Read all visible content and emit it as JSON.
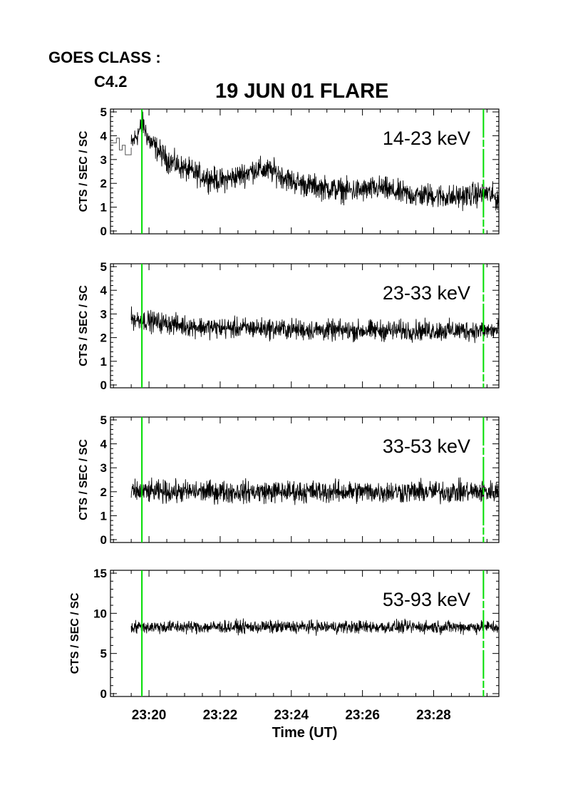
{
  "header": {
    "goes_label": "GOES CLASS :",
    "goes_class": "C4.2",
    "title": "19 JUN 01 FLARE"
  },
  "chart_data": [
    {
      "type": "line",
      "band": "14-23 keV",
      "ylabel": "CTS / SEC / SC",
      "ylim": [
        0,
        5
      ],
      "yticks": [
        0,
        1,
        2,
        3,
        4,
        5
      ],
      "xlim": [
        "23:18:55",
        "23:29:50"
      ],
      "series": [
        {
          "x": [
            "23:19:30",
            "23:19:50",
            "23:20:00",
            "23:20:30",
            "23:21:00",
            "23:21:30",
            "23:22:00",
            "23:22:30",
            "23:23:00",
            "23:23:30",
            "23:24:00",
            "23:24:30",
            "23:25:00",
            "23:25:30",
            "23:26:00",
            "23:26:30",
            "23:27:00",
            "23:27:30",
            "23:28:00",
            "23:28:30",
            "23:29:00",
            "23:29:30",
            "23:29:50"
          ],
          "y": [
            3.6,
            4.5,
            3.8,
            3.0,
            2.6,
            2.3,
            2.1,
            2.3,
            2.6,
            2.5,
            2.1,
            1.9,
            1.8,
            1.7,
            1.7,
            1.8,
            1.6,
            1.5,
            1.5,
            1.4,
            1.5,
            1.6,
            1.3
          ],
          "noise": 0.35
        }
      ],
      "pre_flare_step": {
        "x": [
          "23:18:55",
          "23:19:05",
          "23:19:10",
          "23:19:15",
          "23:19:20",
          "23:19:30"
        ],
        "y": [
          3.7,
          3.9,
          3.4,
          3.6,
          3.2,
          3.5
        ]
      },
      "markers": [
        "23:19:48",
        "23:29:24"
      ],
      "marker_color": "#00dd00"
    },
    {
      "type": "line",
      "band": "23-33 keV",
      "ylabel": "CTS / SEC / SC",
      "ylim": [
        0,
        5
      ],
      "yticks": [
        0,
        1,
        2,
        3,
        4,
        5
      ],
      "xlim": [
        "23:18:55",
        "23:29:50"
      ],
      "series": [
        {
          "x": [
            "23:19:30",
            "23:20:00",
            "23:21:00",
            "23:22:00",
            "23:23:00",
            "23:24:00",
            "23:25:00",
            "23:26:00",
            "23:27:00",
            "23:28:00",
            "23:29:00",
            "23:29:50"
          ],
          "y": [
            2.8,
            2.7,
            2.5,
            2.4,
            2.4,
            2.35,
            2.3,
            2.3,
            2.3,
            2.3,
            2.3,
            2.3
          ],
          "noise": 0.3
        }
      ],
      "markers": [
        "23:19:48",
        "23:29:24"
      ],
      "marker_color": "#00dd00"
    },
    {
      "type": "line",
      "band": "33-53 keV",
      "ylabel": "CTS / SEC / SC",
      "ylim": [
        0,
        5
      ],
      "yticks": [
        0,
        1,
        2,
        3,
        4,
        5
      ],
      "xlim": [
        "23:18:55",
        "23:29:50"
      ],
      "series": [
        {
          "x": [
            "23:19:30",
            "23:20:30",
            "23:21:30",
            "23:22:30",
            "23:23:30",
            "23:24:30",
            "23:25:30",
            "23:26:30",
            "23:27:30",
            "23:28:30",
            "23:29:50"
          ],
          "y": [
            2.0,
            2.0,
            2.0,
            2.0,
            2.0,
            2.0,
            2.0,
            2.0,
            2.0,
            2.0,
            2.0
          ],
          "noise": 0.32
        }
      ],
      "markers": [
        "23:19:48",
        "23:29:24"
      ],
      "marker_color": "#00dd00"
    },
    {
      "type": "line",
      "band": "53-93 keV",
      "ylabel": "CTS / SEC / SC",
      "xlabel": "Time (UT)",
      "ylim": [
        0,
        15
      ],
      "yticks": [
        0,
        5,
        10,
        15
      ],
      "xlim": [
        "23:18:55",
        "23:29:50"
      ],
      "xticks": [
        "23:20",
        "23:22",
        "23:24",
        "23:26",
        "23:28"
      ],
      "series": [
        {
          "x": [
            "23:19:30",
            "23:20:30",
            "23:21:30",
            "23:22:30",
            "23:23:30",
            "23:24:30",
            "23:25:30",
            "23:26:30",
            "23:27:30",
            "23:28:30",
            "23:29:50"
          ],
          "y": [
            8.3,
            8.3,
            8.3,
            8.3,
            8.3,
            8.3,
            8.3,
            8.3,
            8.3,
            8.3,
            8.3
          ],
          "noise": 0.55
        }
      ],
      "markers": [
        "23:19:48",
        "23:29:24"
      ],
      "marker_color": "#00dd00"
    }
  ]
}
